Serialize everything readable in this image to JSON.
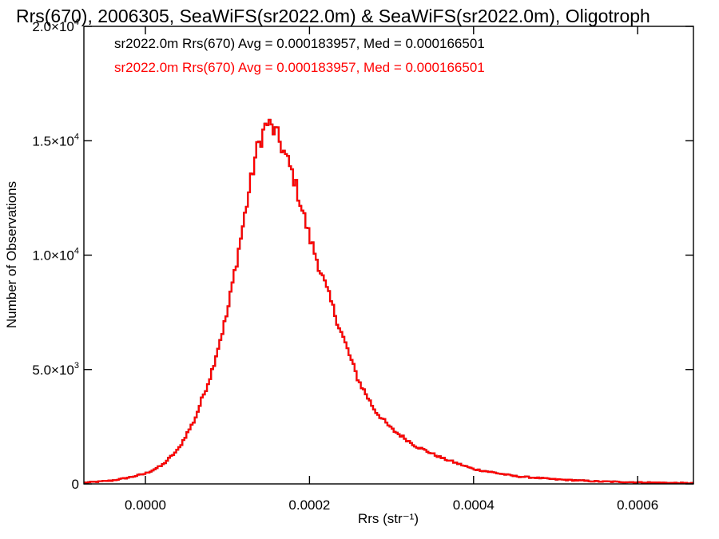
{
  "chart_data": {
    "type": "histogram",
    "title": "Rrs(670), 2006305, SeaWiFS(sr2022.0m) & SeaWiFS(sr2022.0m), Oligotroph",
    "xlabel": "Rrs (str⁻¹)",
    "ylabel": "Number of Observations",
    "xlim": [
      -7.5e-05,
      0.000668
    ],
    "ylim": [
      0,
      20000
    ],
    "x_ticks": [
      {
        "value": 0.0,
        "label": "0.0000"
      },
      {
        "value": 0.0002,
        "label": "0.0002"
      },
      {
        "value": 0.0004,
        "label": "0.0004"
      },
      {
        "value": 0.0006,
        "label": "0.0006"
      }
    ],
    "y_ticks": [
      {
        "value": 0,
        "label": "0",
        "exp": ""
      },
      {
        "value": 5000,
        "label": "5.0×10",
        "exp": "3"
      },
      {
        "value": 10000,
        "label": "1.0×10",
        "exp": "4"
      },
      {
        "value": 15000,
        "label": "1.5×10",
        "exp": "4"
      },
      {
        "value": 20000,
        "label": "2.0×10",
        "exp": "4"
      }
    ],
    "legend": [
      {
        "text": "sr2022.0m Rrs(670) Avg = 0.000183957, Med = 0.000166501",
        "color": "#000000"
      },
      {
        "text": "sr2022.0m Rrs(670) Avg = 0.000183957, Med = 0.000166501",
        "color": "#ff0000"
      }
    ],
    "legend_position": "top-left",
    "series_colors": [
      "#000000",
      "#ff0000"
    ],
    "profile_points": [
      {
        "x": -7.5e-05,
        "y": 50
      },
      {
        "x": -4e-05,
        "y": 150
      },
      {
        "x": -2e-05,
        "y": 280
      },
      {
        "x": 0.0,
        "y": 450
      },
      {
        "x": 2e-05,
        "y": 800
      },
      {
        "x": 4e-05,
        "y": 1500
      },
      {
        "x": 6e-05,
        "y": 2800
      },
      {
        "x": 8e-05,
        "y": 4800
      },
      {
        "x": 0.0001,
        "y": 7500
      },
      {
        "x": 0.00012,
        "y": 11500
      },
      {
        "x": 0.000135,
        "y": 14500
      },
      {
        "x": 0.000148,
        "y": 15800
      },
      {
        "x": 0.00016,
        "y": 15300
      },
      {
        "x": 0.00018,
        "y": 13500
      },
      {
        "x": 0.0002,
        "y": 10800
      },
      {
        "x": 0.00022,
        "y": 8600
      },
      {
        "x": 0.00024,
        "y": 6500
      },
      {
        "x": 0.00026,
        "y": 4500
      },
      {
        "x": 0.00028,
        "y": 3200
      },
      {
        "x": 0.0003,
        "y": 2400
      },
      {
        "x": 0.00033,
        "y": 1650
      },
      {
        "x": 0.00036,
        "y": 1150
      },
      {
        "x": 0.0004,
        "y": 650
      },
      {
        "x": 0.00045,
        "y": 340
      },
      {
        "x": 0.0005,
        "y": 200
      },
      {
        "x": 0.00055,
        "y": 110
      },
      {
        "x": 0.0006,
        "y": 70
      },
      {
        "x": 0.00065,
        "y": 40
      },
      {
        "x": 0.000668,
        "y": 30
      }
    ],
    "bin_width": 2.5e-06,
    "grid": false
  }
}
